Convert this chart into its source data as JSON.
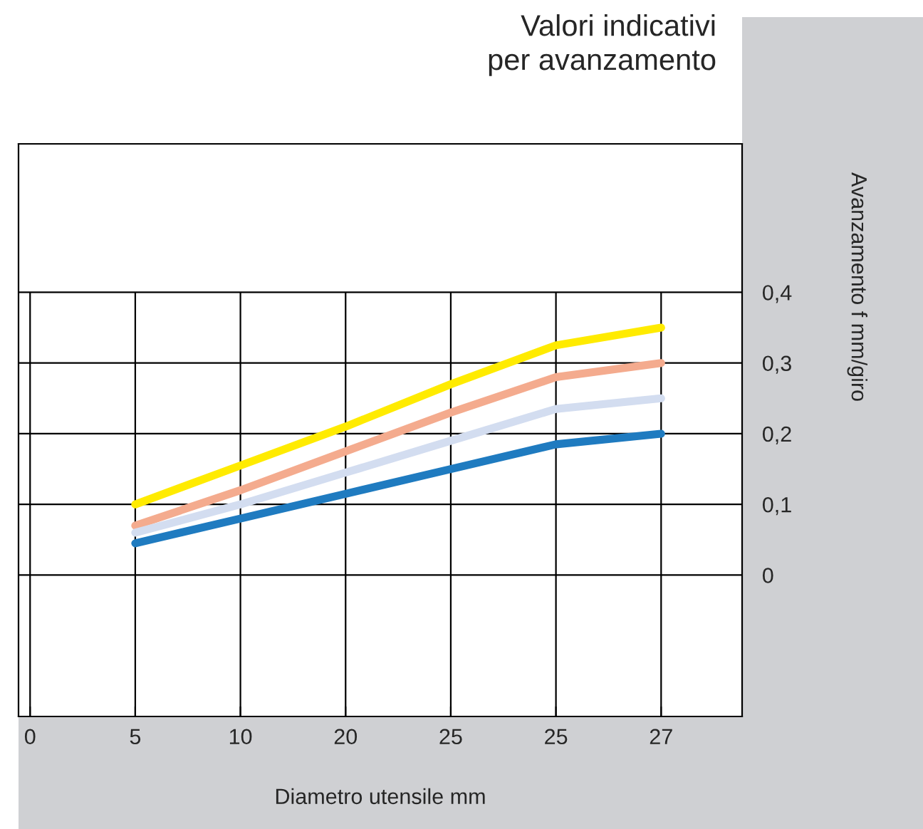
{
  "chart_data": {
    "type": "line",
    "title": "Valori indicativi\nper avanzamento",
    "xlabel": "Diametro utensile mm",
    "ylabel": "Avanzamento f mm/giro",
    "categories": [
      "0",
      "5",
      "10",
      "20",
      "25",
      "25",
      "27"
    ],
    "series": [
      {
        "color": "#ffeb00",
        "values": [
          null,
          0.1,
          0.155,
          0.21,
          0.27,
          0.325,
          0.35
        ]
      },
      {
        "color": "#f4ab8e",
        "values": [
          null,
          0.07,
          0.12,
          0.175,
          0.23,
          0.28,
          0.3
        ]
      },
      {
        "color": "#d3ddf0",
        "values": [
          null,
          0.06,
          0.1,
          0.145,
          0.19,
          0.235,
          0.25
        ]
      },
      {
        "color": "#1f7bc0",
        "values": [
          null,
          0.045,
          0.08,
          0.115,
          0.15,
          0.185,
          0.2
        ]
      }
    ],
    "ylim": [
      -0.2,
      0.61
    ],
    "yticks": [
      {
        "value": 0,
        "label": "0"
      },
      {
        "value": 0.1,
        "label": "0,1"
      },
      {
        "value": 0.2,
        "label": "0,2"
      },
      {
        "value": 0.3,
        "label": "0,3"
      },
      {
        "value": 0.4,
        "label": "0,4"
      }
    ],
    "grid": true,
    "marker": "none",
    "line_style": "solid"
  }
}
